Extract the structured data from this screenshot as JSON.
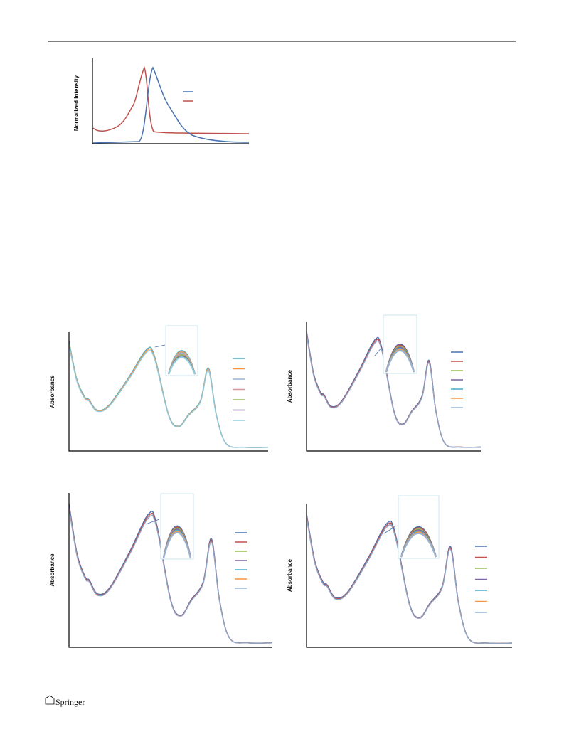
{
  "figures": [
    {
      "y_label": "Normalized Intensity"
    },
    {
      "y_label": "Absorbance"
    },
    {
      "y_label": "Absorbance"
    },
    {
      "y_label": "Absorbance"
    },
    {
      "y_label": "Absorbance"
    }
  ],
  "footer": {
    "publisher": "Springer"
  }
}
